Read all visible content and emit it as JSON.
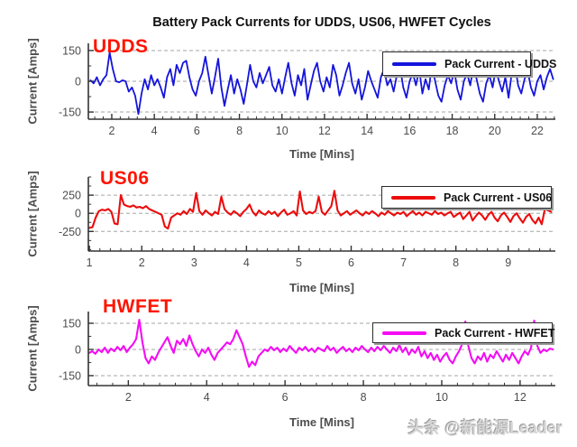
{
  "title": "Battery Pack Currents for UDDS, US06, HWFET Cycles",
  "watermark": "头条 @新能源Leader",
  "colors": {
    "annotation": "#ff1400",
    "axis": "#333333",
    "grid": "#a6a6a6",
    "tick_text": "#4d4d4d"
  },
  "chart_data": [
    {
      "type": "line",
      "annotation": "UDDS",
      "legend": "Pack Current - UDDS",
      "color": "#1414dc",
      "xlabel": "Time [Mins]",
      "ylabel": "Current [Amps]",
      "xlim": [
        0.9,
        22.85
      ],
      "ylim": [
        -185,
        185
      ],
      "xticks": [
        2,
        4,
        6,
        8,
        10,
        12,
        14,
        16,
        18,
        20,
        22
      ],
      "x_minor_step": 0.4,
      "yticks": [
        150,
        0,
        -150
      ],
      "y_minor_step": 75,
      "grid_values": [
        150,
        0,
        -150
      ],
      "grid_on": true,
      "legend_position": "upper right",
      "series": {
        "name": "Pack Current - UDDS",
        "x_start": 1.0,
        "x_step": 0.15,
        "y": [
          5,
          -10,
          20,
          -20,
          10,
          30,
          140,
          60,
          0,
          -5,
          5,
          0,
          -50,
          -30,
          -70,
          -160,
          -60,
          10,
          -40,
          30,
          -20,
          10,
          -30,
          -80,
          20,
          60,
          -20,
          80,
          40,
          90,
          100,
          20,
          -40,
          -70,
          0,
          40,
          120,
          30,
          -60,
          20,
          110,
          -30,
          -120,
          -40,
          30,
          -60,
          10,
          -40,
          -110,
          -20,
          80,
          0,
          -30,
          40,
          -10,
          30,
          70,
          -20,
          -50,
          10,
          -60,
          20,
          90,
          -10,
          -70,
          30,
          -20,
          60,
          -90,
          -20,
          50,
          90,
          0,
          -50,
          20,
          -30,
          80,
          30,
          -70,
          -20,
          40,
          90,
          -10,
          -60,
          10,
          -90,
          -30,
          50,
          0,
          -40,
          -80,
          20,
          60,
          -20,
          10,
          -50,
          30,
          70,
          -30,
          -80,
          0,
          40,
          -20,
          60,
          -60,
          10,
          -40,
          80,
          0,
          -70,
          -100,
          -20,
          30,
          -10,
          50,
          -40,
          -90,
          0,
          40,
          -20,
          70,
          10,
          -60,
          -100,
          -10,
          30,
          -30,
          60,
          0,
          -50,
          20,
          -80,
          40,
          80,
          -20,
          -60,
          10,
          50,
          -30,
          -70,
          0,
          30,
          -40,
          20,
          60,
          10
        ]
      }
    },
    {
      "type": "line",
      "annotation": "US06",
      "legend": "Pack Current - US06",
      "color": "#ec0c0c",
      "xlabel": "Time [Mins]",
      "ylabel": "Current [Amps]",
      "xlim": [
        0.98,
        9.9
      ],
      "ylim": [
        -520,
        500
      ],
      "xticks": [
        1,
        2,
        3,
        4,
        5,
        6,
        7,
        8,
        9
      ],
      "x_minor_step": 0.2,
      "yticks": [
        250,
        0,
        -250
      ],
      "y_minor_step": 125,
      "grid_values": [
        250,
        0,
        -250
      ],
      "grid_on": true,
      "legend_position": "upper right",
      "series": {
        "name": "Pack Current - US06",
        "x_start": 1.0,
        "x_step": 0.06,
        "y": [
          -200,
          -190,
          -60,
          30,
          50,
          40,
          60,
          20,
          -140,
          -150,
          250,
          120,
          100,
          90,
          110,
          80,
          90,
          70,
          100,
          60,
          40,
          20,
          0,
          -20,
          -180,
          -210,
          -60,
          -30,
          0,
          -20,
          30,
          -10,
          60,
          20,
          280,
          30,
          -20,
          40,
          0,
          -30,
          20,
          -10,
          230,
          60,
          10,
          -20,
          30,
          0,
          -40,
          20,
          60,
          120,
          20,
          -30,
          40,
          0,
          -20,
          30,
          -10,
          20,
          -40,
          10,
          50,
          -20,
          0,
          30,
          -30,
          300,
          40,
          -10,
          20,
          0,
          30,
          230,
          20,
          -20,
          40,
          100,
          310,
          40,
          -30,
          0,
          30,
          -20,
          10,
          40,
          0,
          -30,
          20,
          -10,
          30,
          0,
          -40,
          10,
          -20,
          30,
          0,
          -30,
          10,
          -10,
          20,
          -40,
          0,
          30,
          -20,
          10,
          -30,
          20,
          0,
          -20,
          30,
          -10,
          10,
          -30,
          0,
          20,
          -50,
          -20,
          10,
          -80,
          -30,
          20,
          -100,
          -40,
          10,
          -30,
          -90,
          -20,
          20,
          -60,
          -110,
          -30,
          10,
          -50,
          -120,
          -40,
          0,
          -70,
          -130,
          -50,
          -10,
          -90,
          -140,
          -60,
          -150,
          60,
          40,
          20
        ]
      }
    },
    {
      "type": "line",
      "annotation": "HWFET",
      "legend": "Pack Current - HWFET",
      "color": "#f40cf4",
      "xlabel": "Time [Mins]",
      "ylabel": "Current [Amps]",
      "xlim": [
        0.98,
        12.9
      ],
      "ylim": [
        -207,
        217
      ],
      "xticks": [
        2,
        4,
        6,
        8,
        10,
        12
      ],
      "x_minor_step": 0.4,
      "yticks": [
        150,
        0,
        -150
      ],
      "y_minor_step": 75,
      "grid_values": [
        150,
        0,
        -150
      ],
      "grid_on": true,
      "legend_position": "upper right",
      "series": {
        "name": "Pack Current - HWFET",
        "x_start": 1.0,
        "x_step": 0.08,
        "y": [
          -20,
          -10,
          -25,
          0,
          -15,
          10,
          -20,
          5,
          -10,
          15,
          -5,
          20,
          -15,
          10,
          30,
          60,
          170,
          40,
          -50,
          -80,
          -40,
          -60,
          -20,
          10,
          40,
          70,
          20,
          -20,
          50,
          30,
          60,
          20,
          80,
          30,
          -10,
          -40,
          0,
          -20,
          10,
          -30,
          -60,
          -20,
          0,
          20,
          40,
          30,
          60,
          110,
          70,
          30,
          -40,
          -100,
          -70,
          -90,
          -40,
          -20,
          0,
          -10,
          15,
          -5,
          10,
          -15,
          5,
          -10,
          20,
          0,
          -20,
          10,
          -5,
          15,
          -10,
          5,
          -15,
          10,
          0,
          -10,
          20,
          -5,
          10,
          -20,
          0,
          15,
          -10,
          5,
          -15,
          10,
          -5,
          20,
          0,
          -15,
          10,
          -10,
          15,
          -5,
          20,
          0,
          -20,
          10,
          -10,
          25,
          -15,
          10,
          -30,
          0,
          -20,
          15,
          -40,
          -10,
          -50,
          -20,
          -60,
          -30,
          -70,
          -40,
          -20,
          -60,
          -80,
          -40,
          -10,
          30,
          160,
          20,
          -50,
          -80,
          -40,
          -60,
          -20,
          -70,
          -30,
          -50,
          -10,
          -40,
          -70,
          -30,
          -60,
          -20,
          -50,
          -80,
          -40,
          -10,
          -30,
          10,
          165,
          20,
          -20,
          0,
          -10,
          5,
          0
        ]
      }
    }
  ]
}
